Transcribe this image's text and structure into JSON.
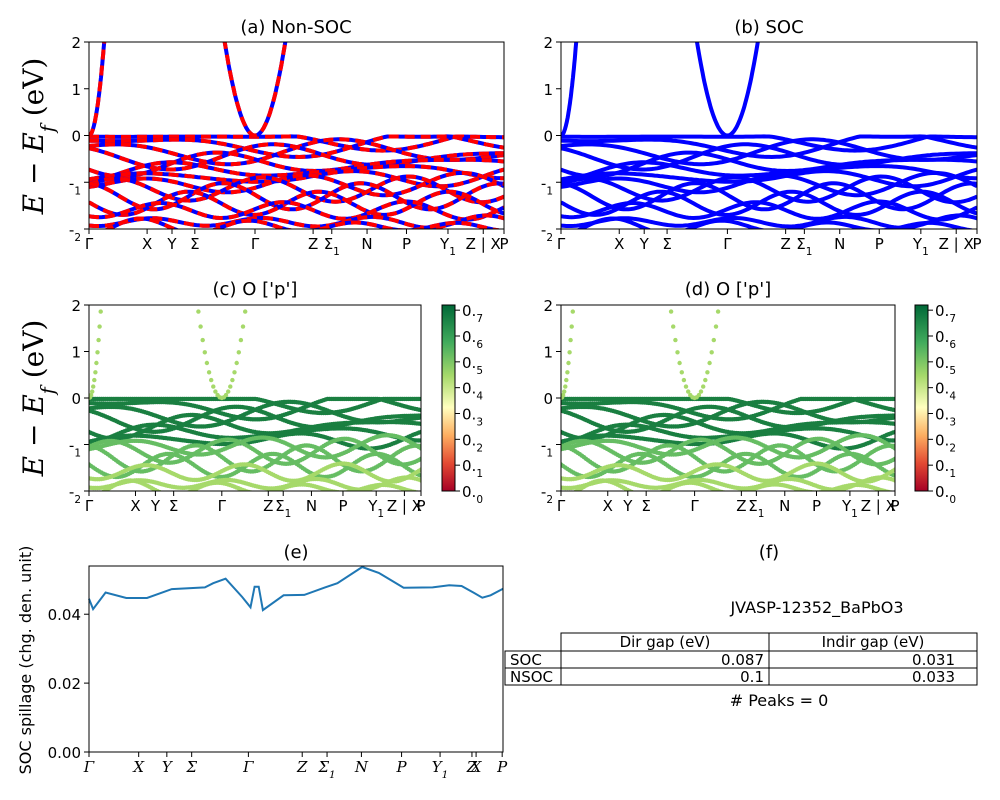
{
  "figure_title": "JVASP-12352_BaPbO3",
  "ylabel_band": "E − E_f (eV)",
  "colors": {
    "up": "#0000ff",
    "down": "#ff0000",
    "spillage": "#1f77b4"
  },
  "kpath_labels": [
    "Γ",
    "X",
    "Y",
    "Σ",
    "Γ",
    "Z",
    "Σ1",
    "N",
    "P",
    "Y1",
    "Z | X",
    "P"
  ],
  "kpath_labels_spillage": [
    "Γ",
    "X",
    "Y",
    "Σ",
    "Γ",
    "Z",
    "Σ1",
    "N",
    "P",
    "Y1",
    "Z",
    "X",
    "P"
  ],
  "colorbar": {
    "ticks": [
      "0.0",
      "0.1",
      "0.2",
      "0.3",
      "0.4",
      "0.5",
      "0.6",
      "0.7"
    ],
    "colormap": "RdYlGn"
  },
  "table": {
    "headers": [
      "Dir gap (eV)",
      "Indir gap (eV)"
    ],
    "rows": [
      {
        "label": "SOC",
        "dir": "0.087",
        "indir": "0.031"
      },
      {
        "label": "NSOC",
        "dir": "0.1",
        "indir": "0.033"
      }
    ]
  },
  "peaks_text": "# Peaks = 0",
  "chart_data": [
    {
      "panel": "a",
      "type": "line",
      "title": "(a) Non-SOC",
      "ylim": [
        -2,
        2
      ],
      "yticks": [
        2,
        1,
        0,
        -1,
        -2
      ],
      "xticks": [
        0,
        0.14,
        0.2,
        0.255,
        0.4,
        0.54,
        0.585,
        0.67,
        0.765,
        0.865,
        0.95,
        1.0
      ],
      "series": [
        {
          "values": "schematic band structure (spin up blue solid, spin down red dashed)"
        }
      ]
    },
    {
      "panel": "b",
      "type": "line",
      "title": "(b) SOC",
      "ylim": [
        -2,
        2
      ],
      "yticks": [
        2,
        1,
        0,
        -1,
        -2
      ],
      "xticks": [
        0,
        0.14,
        0.2,
        0.255,
        0.4,
        0.54,
        0.585,
        0.67,
        0.765,
        0.865,
        0.95,
        1.0
      ],
      "series": [
        {
          "values": "schematic band structure"
        }
      ]
    },
    {
      "panel": "c",
      "type": "scatter",
      "title": "(c)  O ['p']",
      "ylim": [
        -2,
        2
      ],
      "yticks": [
        2,
        1,
        0,
        -1,
        -2
      ],
      "clim": [
        0,
        0.7
      ]
    },
    {
      "panel": "d",
      "type": "scatter",
      "title": "(d) O ['p']",
      "ylim": [
        -2,
        2
      ],
      "yticks": [
        2,
        1,
        0,
        -1,
        -2
      ],
      "clim": [
        0,
        0.7
      ]
    },
    {
      "panel": "e",
      "type": "line",
      "title": "(e)",
      "ylabel": "SOC spillage (chg. den. unit)",
      "ylim": [
        0,
        0.054
      ],
      "yticks": [
        "0.00",
        "0.02",
        "0.04"
      ],
      "x": [
        0,
        0.01,
        0.04,
        0.09,
        0.14,
        0.2,
        0.28,
        0.3,
        0.33,
        0.37,
        0.39,
        0.4,
        0.41,
        0.42,
        0.47,
        0.52,
        0.57,
        0.6,
        0.66,
        0.7,
        0.76,
        0.83,
        0.87,
        0.9,
        0.93,
        0.95,
        0.97,
        1.0
      ],
      "values": [
        0.0445,
        0.0415,
        0.0463,
        0.0447,
        0.0447,
        0.0473,
        0.0478,
        0.049,
        0.0503,
        0.045,
        0.042,
        0.048,
        0.048,
        0.0412,
        0.0455,
        0.0456,
        0.0478,
        0.049,
        0.0537,
        0.052,
        0.0477,
        0.0478,
        0.0484,
        0.0482,
        0.0462,
        0.0448,
        0.0455,
        0.0474
      ],
      "title_f": "(f)"
    }
  ]
}
